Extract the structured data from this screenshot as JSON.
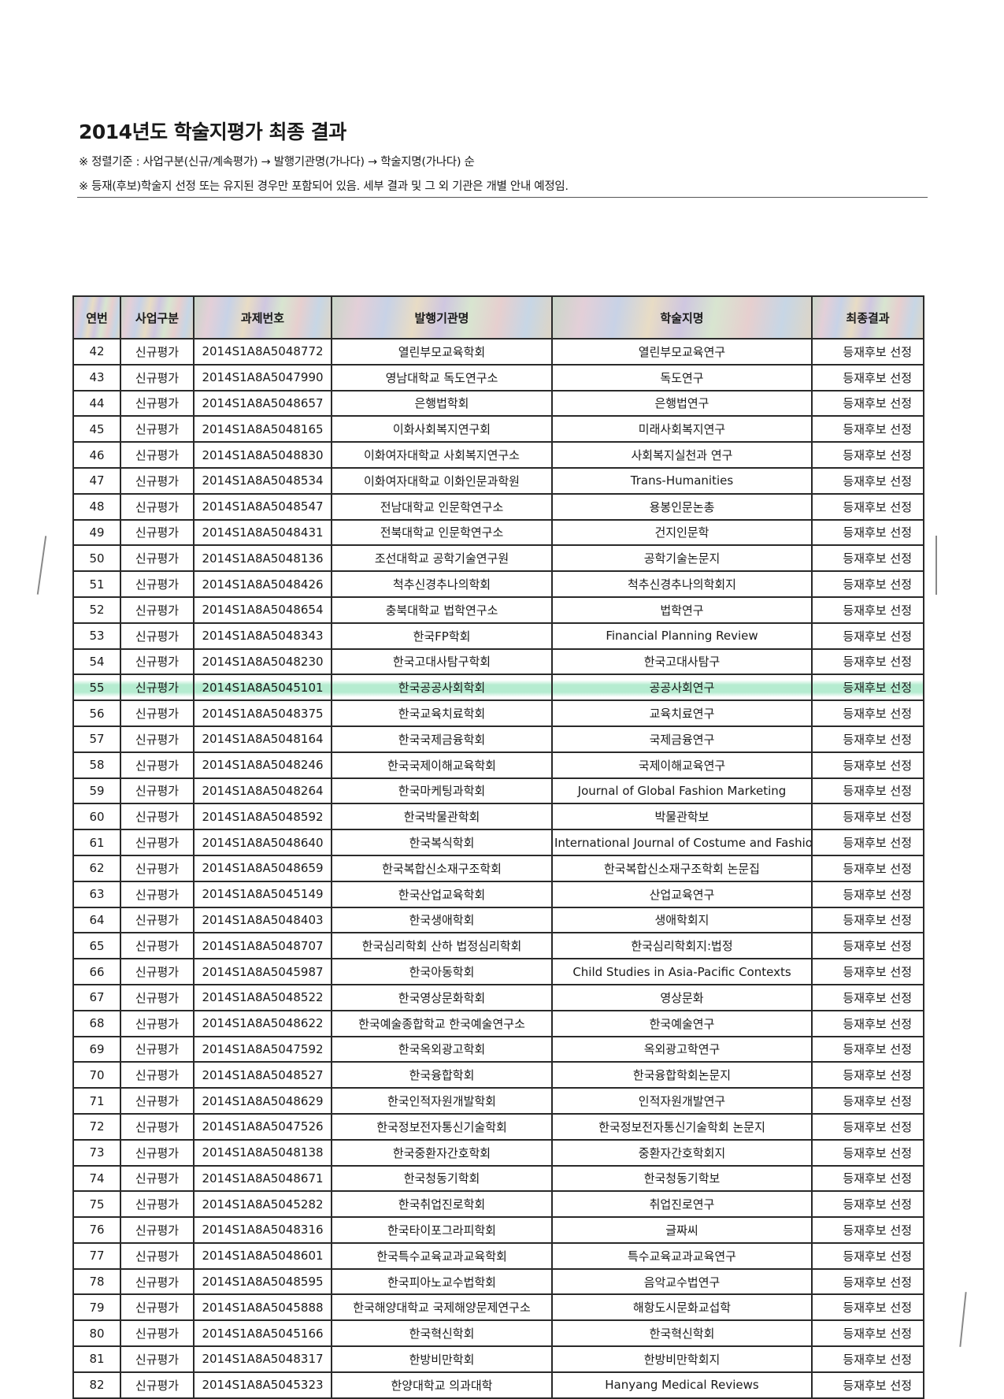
{
  "title": "2014년도 학술지평가 최종 결과",
  "notes": [
    "※ 정렬기준 : 사업구분(신규/계속평가) → 발행기관명(가나다) → 학술지명(가나다) 순",
    "※ 등재(후보)학술지 선정 또는 유지된 경우만 포함되어 있음. 세부 결과 및 그 외 기관은 개별 안내 예정임."
  ],
  "table": {
    "headers": [
      "연번",
      "사업구분",
      "과제번호",
      "발행기관명",
      "학술지명",
      "최종결과"
    ],
    "highlight_color": "#78dcaa",
    "highlighted_row": "55",
    "rows": [
      [
        "42",
        "신규평가",
        "2014S1A8A5048772",
        "열린부모교육학회",
        "열린부모교육연구",
        "등재후보 선정"
      ],
      [
        "43",
        "신규평가",
        "2014S1A8A5047990",
        "영남대학교 독도연구소",
        "독도연구",
        "등재후보 선정"
      ],
      [
        "44",
        "신규평가",
        "2014S1A8A5048657",
        "은행법학회",
        "은행법연구",
        "등재후보 선정"
      ],
      [
        "45",
        "신규평가",
        "2014S1A8A5048165",
        "이화사회복지연구회",
        "미래사회복지연구",
        "등재후보 선정"
      ],
      [
        "46",
        "신규평가",
        "2014S1A8A5048830",
        "이화여자대학교 사회복지연구소",
        "사회복지실천과 연구",
        "등재후보 선정"
      ],
      [
        "47",
        "신규평가",
        "2014S1A8A5048534",
        "이화여자대학교 이화인문과학원",
        "Trans-Humanities",
        "등재후보 선정"
      ],
      [
        "48",
        "신규평가",
        "2014S1A8A5048547",
        "전남대학교 인문학연구소",
        "용봉인문논총",
        "등재후보 선정"
      ],
      [
        "49",
        "신규평가",
        "2014S1A8A5048431",
        "전북대학교 인문학연구소",
        "건지인문학",
        "등재후보 선정"
      ],
      [
        "50",
        "신규평가",
        "2014S1A8A5048136",
        "조선대학교 공학기술연구원",
        "공학기술논문지",
        "등재후보 선정"
      ],
      [
        "51",
        "신규평가",
        "2014S1A8A5048426",
        "척추신경추나의학회",
        "척추신경추나의학회지",
        "등재후보 선정"
      ],
      [
        "52",
        "신규평가",
        "2014S1A8A5048654",
        "충북대학교 법학연구소",
        "법학연구",
        "등재후보 선정"
      ],
      [
        "53",
        "신규평가",
        "2014S1A8A5048343",
        "한국FP학회",
        "Financial Planning Review",
        "등재후보 선정"
      ],
      [
        "54",
        "신규평가",
        "2014S1A8A5048230",
        "한국고대사탐구학회",
        "한국고대사탐구",
        "등재후보 선정"
      ],
      [
        "55",
        "신규평가",
        "2014S1A8A5045101",
        "한국공공사회학회",
        "공공사회연구",
        "등재후보 선정"
      ],
      [
        "56",
        "신규평가",
        "2014S1A8A5048375",
        "한국교육치료학회",
        "교육치료연구",
        "등재후보 선정"
      ],
      [
        "57",
        "신규평가",
        "2014S1A8A5048164",
        "한국국제금융학회",
        "국제금융연구",
        "등재후보 선정"
      ],
      [
        "58",
        "신규평가",
        "2014S1A8A5048246",
        "한국국제이해교육학회",
        "국제이해교육연구",
        "등재후보 선정"
      ],
      [
        "59",
        "신규평가",
        "2014S1A8A5048264",
        "한국마케팅과학회",
        "Journal of Global Fashion Marketing",
        "등재후보 선정"
      ],
      [
        "60",
        "신규평가",
        "2014S1A8A5048592",
        "한국박물관학회",
        "박물관학보",
        "등재후보 선정"
      ],
      [
        "61",
        "신규평가",
        "2014S1A8A5048640",
        "한국복식학회",
        "International Journal of Costume and Fashion",
        "등재후보 선정"
      ],
      [
        "62",
        "신규평가",
        "2014S1A8A5048659",
        "한국복합신소재구조학회",
        "한국복합신소재구조학회 논문집",
        "등재후보 선정"
      ],
      [
        "63",
        "신규평가",
        "2014S1A8A5045149",
        "한국산업교육학회",
        "산업교육연구",
        "등재후보 선정"
      ],
      [
        "64",
        "신규평가",
        "2014S1A8A5048403",
        "한국생애학회",
        "생애학회지",
        "등재후보 선정"
      ],
      [
        "65",
        "신규평가",
        "2014S1A8A5048707",
        "한국심리학회 산하 법정심리학회",
        "한국심리학회지:법정",
        "등재후보 선정"
      ],
      [
        "66",
        "신규평가",
        "2014S1A8A5045987",
        "한국아동학회",
        "Child Studies in Asia-Pacific Contexts",
        "등재후보 선정"
      ],
      [
        "67",
        "신규평가",
        "2014S1A8A5048522",
        "한국영상문화학회",
        "영상문화",
        "등재후보 선정"
      ],
      [
        "68",
        "신규평가",
        "2014S1A8A5048622",
        "한국예술종합학교 한국예술연구소",
        "한국예술연구",
        "등재후보 선정"
      ],
      [
        "69",
        "신규평가",
        "2014S1A8A5047592",
        "한국옥외광고학회",
        "옥외광고학연구",
        "등재후보 선정"
      ],
      [
        "70",
        "신규평가",
        "2014S1A8A5048527",
        "한국융합학회",
        "한국융합학회논문지",
        "등재후보 선정"
      ],
      [
        "71",
        "신규평가",
        "2014S1A8A5048629",
        "한국인적자원개발학회",
        "인적자원개발연구",
        "등재후보 선정"
      ],
      [
        "72",
        "신규평가",
        "2014S1A8A5047526",
        "한국정보전자통신기술학회",
        "한국정보전자통신기술학회 논문지",
        "등재후보 선정"
      ],
      [
        "73",
        "신규평가",
        "2014S1A8A5048138",
        "한국중환자간호학회",
        "중환자간호학회지",
        "등재후보 선정"
      ],
      [
        "74",
        "신규평가",
        "2014S1A8A5048671",
        "한국청동기학회",
        "한국청동기학보",
        "등재후보 선정"
      ],
      [
        "75",
        "신규평가",
        "2014S1A8A5045282",
        "한국취업진로학회",
        "취업진로연구",
        "등재후보 선정"
      ],
      [
        "76",
        "신규평가",
        "2014S1A8A5048316",
        "한국타이포그라피학회",
        "글짜씨",
        "등재후보 선정"
      ],
      [
        "77",
        "신규평가",
        "2014S1A8A5048601",
        "한국특수교육교과교육학회",
        "특수교육교과교육연구",
        "등재후보 선정"
      ],
      [
        "78",
        "신규평가",
        "2014S1A8A5048595",
        "한국피아노교수법학회",
        "음악교수법연구",
        "등재후보 선정"
      ],
      [
        "79",
        "신규평가",
        "2014S1A8A5045888",
        "한국해양대학교 국제해양문제연구소",
        "해항도시문화교섭학",
        "등재후보 선정"
      ],
      [
        "80",
        "신규평가",
        "2014S1A8A5045166",
        "한국혁신학회",
        "한국혁신학회",
        "등재후보 선정"
      ],
      [
        "81",
        "신규평가",
        "2014S1A8A5048317",
        "한방비만학회",
        "한방비만학회지",
        "등재후보 선정"
      ],
      [
        "82",
        "신규평가",
        "2014S1A8A5045323",
        "한양대학교 의과대학",
        "Hanyang Medical Reviews",
        "등재후보 선정"
      ]
    ]
  }
}
